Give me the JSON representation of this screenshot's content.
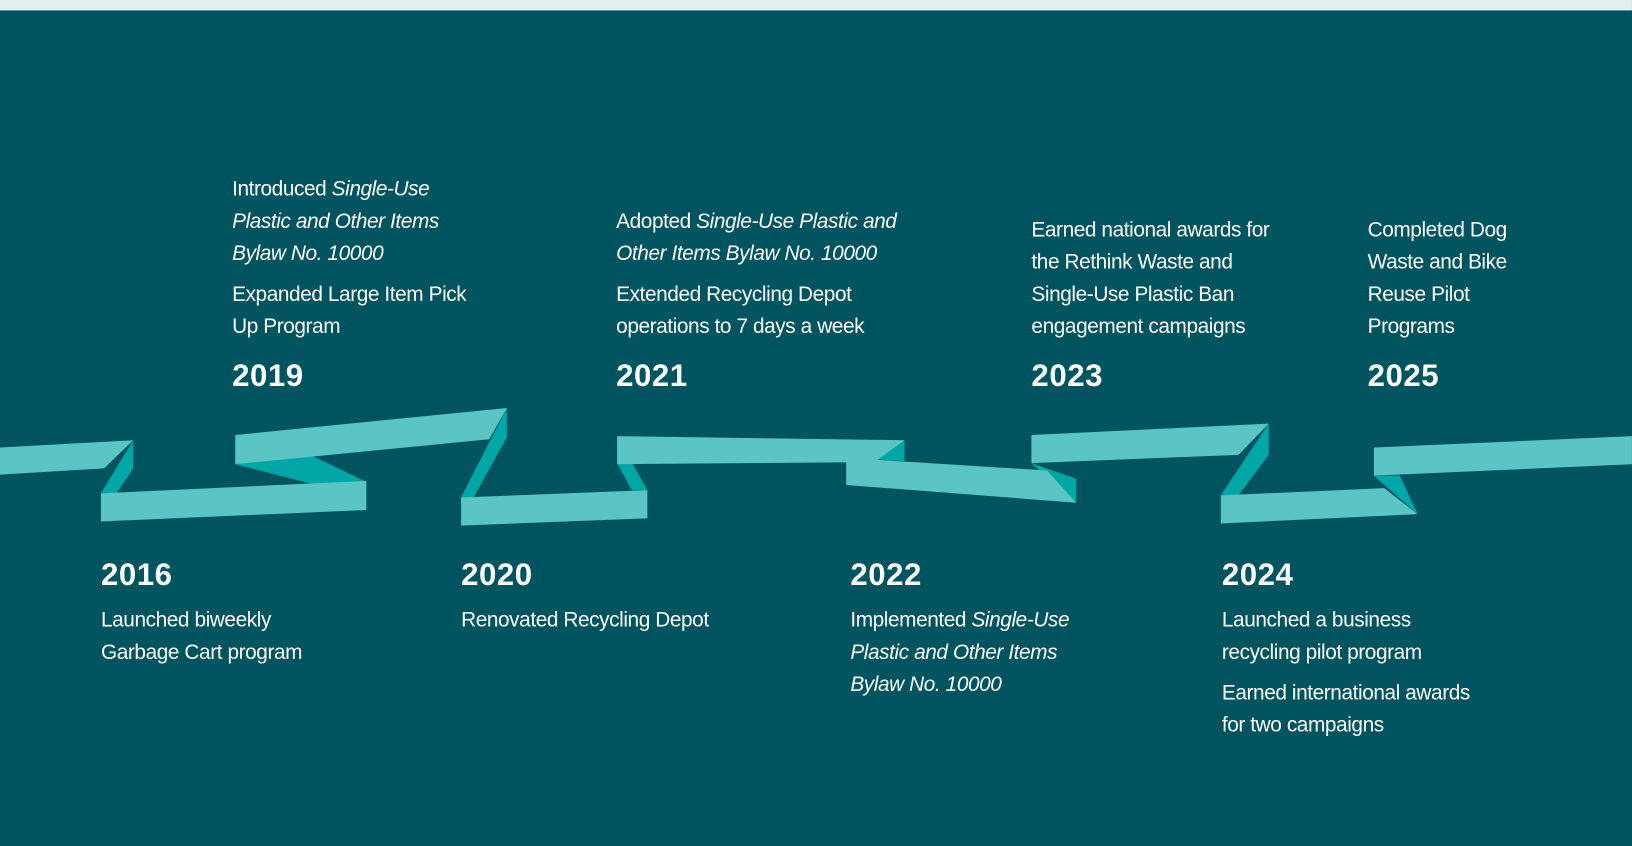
{
  "events": [
    {
      "year": "2016",
      "items": [
        [
          "Launched biweekly Garbage Cart program"
        ]
      ]
    },
    {
      "year": "2019",
      "items": [
        [
          "Introduced ",
          {
            "text": "Single-Use Plastic and Other Items Bylaw No. 10000",
            "italic": true
          }
        ],
        [
          "Expanded Large Item Pick Up Program"
        ]
      ]
    },
    {
      "year": "2020",
      "items": [
        [
          "Renovated Recycling Depot"
        ]
      ]
    },
    {
      "year": "2021",
      "items": [
        [
          "Adopted ",
          {
            "text": "Single-Use Plastic and Other Items Bylaw No. 10000",
            "italic": true
          }
        ],
        [
          "Extended Recycling Depot operations to 7 days a week"
        ]
      ]
    },
    {
      "year": "2022",
      "items": [
        [
          "Implemented ",
          {
            "text": "Single-Use Plastic and Other Items Bylaw No. 10000",
            "italic": true
          }
        ]
      ]
    },
    {
      "year": "2023",
      "items": [
        [
          "Earned national awards for the Rethink Waste and Single-Use Plastic Ban engagement campaigns"
        ]
      ]
    },
    {
      "year": "2024",
      "items": [
        [
          "Launched a business recycling pilot program"
        ],
        [
          "Earned international awards for two campaigns"
        ]
      ]
    },
    {
      "year": "2025",
      "items": [
        [
          "Completed Dog Waste and Bike Reuse Pilot Programs"
        ]
      ]
    }
  ]
}
